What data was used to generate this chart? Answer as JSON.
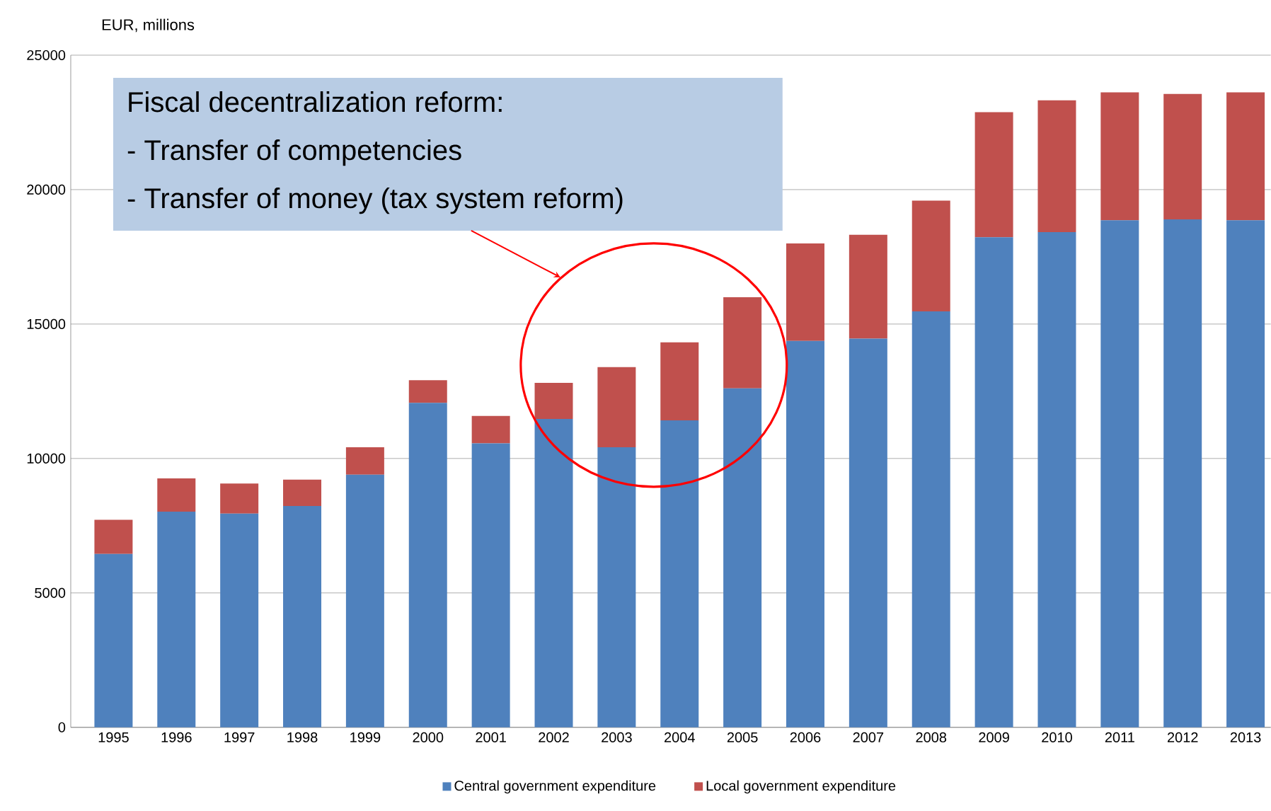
{
  "chart_data": {
    "type": "bar",
    "stacked": true,
    "ylabel": "EUR, millions",
    "categories": [
      "1995",
      "1996",
      "1997",
      "1998",
      "1999",
      "2000",
      "2001",
      "2002",
      "2003",
      "2004",
      "2005",
      "2006",
      "2007",
      "2008",
      "2009",
      "2010",
      "2011",
      "2012",
      "2013"
    ],
    "series": [
      {
        "name": "Central government expenditure",
        "color": "#4f81bd",
        "values": [
          6450,
          8020,
          7950,
          8230,
          9400,
          12070,
          10560,
          11470,
          10420,
          11420,
          12610,
          14370,
          14460,
          15470,
          18230,
          18420,
          18860,
          18890,
          18860
        ]
      },
      {
        "name": "Local government expenditure",
        "color": "#c0504d",
        "values": [
          1270,
          1240,
          1120,
          980,
          1020,
          840,
          1020,
          1340,
          2980,
          2900,
          3390,
          3630,
          3860,
          4120,
          4650,
          4900,
          4760,
          4670,
          4760
        ]
      }
    ],
    "ylim": [
      0,
      25000
    ],
    "yticks": [
      0,
      5000,
      10000,
      15000,
      20000,
      25000
    ],
    "grid": "y",
    "legend": "bottom",
    "annotations": [
      "Fiscal decentralization reform:",
      "-    Transfer of competencies",
      "-    Transfer of money (tax system reform)"
    ]
  }
}
